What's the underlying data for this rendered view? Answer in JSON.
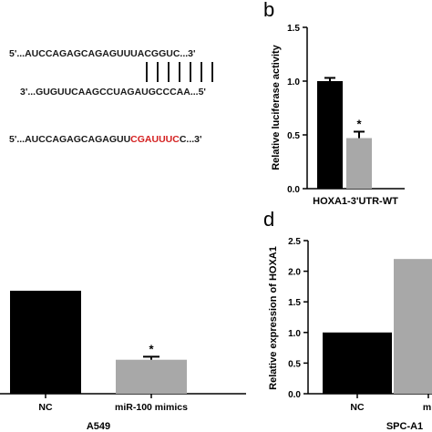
{
  "panel_a": {
    "line1": "5'...AUCCAGAGCAGAGUUUACGGUC...3'",
    "line2": "3'...GUGUUCAAGCCUAGAUGCCCAA...5'",
    "line3_pre": "5'...AUCCAGAGCAGAGUU",
    "line3_mut": "CGAUUUC",
    "line3_post": "C...3'",
    "pairing_lines": 7
  },
  "panel_b": {
    "letter": "b"
  },
  "panel_d": {
    "letter": "d"
  },
  "chart_data": [
    {
      "type": "bar",
      "panel": "b",
      "categories": [
        "HOXA1-3'UTR-WT"
      ],
      "series": [
        {
          "values": [
            1.0
          ],
          "errors": [
            0.03
          ],
          "color": "#000000"
        },
        {
          "values": [
            0.47
          ],
          "errors": [
            0.06
          ],
          "color": "#a8a8a8",
          "significance": "*"
        }
      ],
      "xlabel": "HOXA1-3'UTR-WT",
      "ylabel": "Relative luciferase activity",
      "ylim": [
        0,
        1.5
      ],
      "yticks": [
        "0.0",
        "0.5",
        "1.0",
        "1.5"
      ]
    },
    {
      "type": "bar",
      "panel": "c",
      "categories": [
        "NC",
        "miR-100 mimics"
      ],
      "values": [
        1.0,
        0.33
      ],
      "errors": [
        0.0,
        0.03
      ],
      "colors": [
        "#000000",
        "#a8a8a8"
      ],
      "significance": [
        "",
        "*"
      ],
      "xlabel": "A549"
    },
    {
      "type": "bar",
      "panel": "d",
      "categories": [
        "NC",
        "mi"
      ],
      "values": [
        1.0,
        2.2
      ],
      "colors": [
        "#000000",
        "#a8a8a8"
      ],
      "xlabel": "SPC-A1",
      "ylabel": "Relative expression of HOXA1",
      "ylim": [
        0,
        2.5
      ],
      "yticks": [
        "0.0",
        "0.5",
        "1.0",
        "1.5",
        "2.0",
        "2.5"
      ]
    }
  ]
}
